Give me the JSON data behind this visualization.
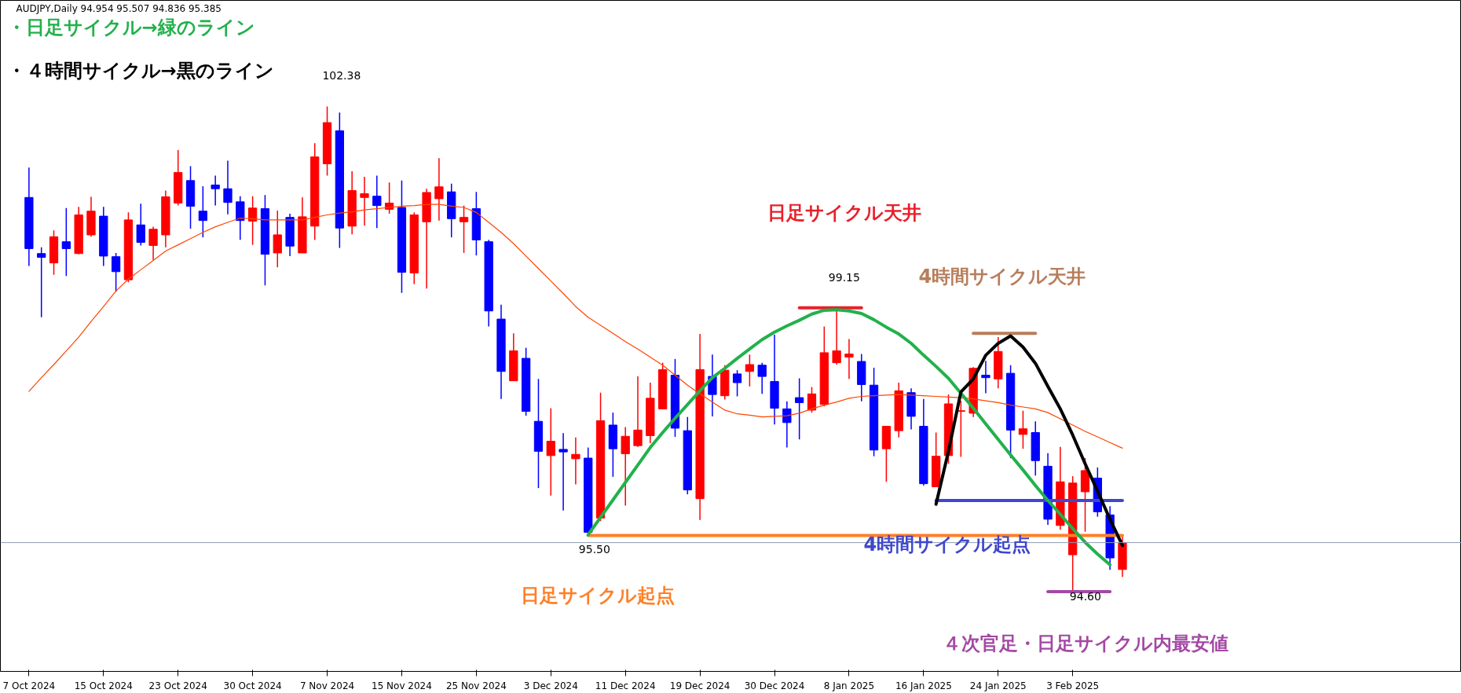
{
  "chart_data": {
    "type": "candlestick",
    "categories": [
      "7 Oct 2024",
      null,
      null,
      null,
      null,
      null,
      "15 Oct 2024",
      null,
      null,
      null,
      null,
      null,
      "23 Oct 2024",
      null,
      null,
      null,
      null,
      null,
      "30 Oct 2024",
      null,
      null,
      null,
      null,
      null,
      "7 Nov 2024",
      null,
      null,
      null,
      null,
      null,
      "15 Nov 2024",
      null,
      null,
      null,
      null,
      null,
      "25 Nov 2024",
      null,
      null,
      null,
      null,
      null,
      "3 Dec 2024",
      null,
      null,
      null,
      null,
      null,
      "11 Dec 2024",
      null,
      null,
      null,
      null,
      null,
      "19 Dec 2024",
      null,
      null,
      null,
      null,
      null,
      "30 Dec 2024",
      null,
      null,
      null,
      null,
      null,
      "8 Jan 2025",
      null,
      null,
      null,
      null,
      null,
      "16 Jan 2025",
      null,
      null,
      null,
      null,
      null,
      "24 Jan 2025",
      null,
      null,
      null,
      null,
      null,
      "3 Feb 2025",
      null,
      null,
      null,
      null
    ],
    "ohlc": [
      [
        100.92,
        101.4,
        99.82,
        100.1
      ],
      [
        100.02,
        100.12,
        99.0,
        99.96
      ],
      [
        99.87,
        100.39,
        99.68,
        100.29
      ],
      [
        100.21,
        100.75,
        99.66,
        100.1
      ],
      [
        100.02,
        100.77,
        100.01,
        100.64
      ],
      [
        100.32,
        100.93,
        100.29,
        100.7
      ],
      [
        100.62,
        100.77,
        99.82,
        99.98
      ],
      [
        99.97,
        100.03,
        99.41,
        99.73
      ],
      [
        99.6,
        100.68,
        99.56,
        100.56
      ],
      [
        100.48,
        100.82,
        100.15,
        100.2
      ],
      [
        100.15,
        100.45,
        99.92,
        100.41
      ],
      [
        100.32,
        101.03,
        100.12,
        100.93
      ],
      [
        100.83,
        101.68,
        100.79,
        101.32
      ],
      [
        101.19,
        101.42,
        100.42,
        100.78
      ],
      [
        100.7,
        101.1,
        100.28,
        100.55
      ],
      [
        101.12,
        101.27,
        100.79,
        101.06
      ],
      [
        101.06,
        101.51,
        100.65,
        100.84
      ],
      [
        100.85,
        100.94,
        100.24,
        100.55
      ],
      [
        100.54,
        100.94,
        100.16,
        100.75
      ],
      [
        100.74,
        100.96,
        99.51,
        100.01
      ],
      [
        100.03,
        100.71,
        99.8,
        100.32
      ],
      [
        100.6,
        100.66,
        99.98,
        100.14
      ],
      [
        100.03,
        100.92,
        100.03,
        100.61
      ],
      [
        100.46,
        101.79,
        100.24,
        101.57
      ],
      [
        101.46,
        102.38,
        101.27,
        102.12
      ],
      [
        101.99,
        102.28,
        100.11,
        100.43
      ],
      [
        100.46,
        101.34,
        100.33,
        101.03
      ],
      [
        100.92,
        101.25,
        100.47,
        100.98
      ],
      [
        100.94,
        101.27,
        100.43,
        100.79
      ],
      [
        100.73,
        101.16,
        100.66,
        100.83
      ],
      [
        100.76,
        101.19,
        99.39,
        99.72
      ],
      [
        99.71,
        100.68,
        99.53,
        100.64
      ],
      [
        100.53,
        101.06,
        99.46,
        101.0
      ],
      [
        100.9,
        101.55,
        100.55,
        101.09
      ],
      [
        101.01,
        101.14,
        100.28,
        100.58
      ],
      [
        100.53,
        100.79,
        100.03,
        100.6
      ],
      [
        100.74,
        101.01,
        99.99,
        100.24
      ],
      [
        100.21,
        100.24,
        98.85,
        99.1
      ],
      [
        98.97,
        99.2,
        97.69,
        98.13
      ],
      [
        97.98,
        98.74,
        97.98,
        98.46
      ],
      [
        98.34,
        98.51,
        97.42,
        97.49
      ],
      [
        97.33,
        98.01,
        96.26,
        96.85
      ],
      [
        96.78,
        97.54,
        96.14,
        97.01
      ],
      [
        96.88,
        97.14,
        95.9,
        96.84
      ],
      [
        96.73,
        97.07,
        96.32,
        96.8
      ],
      [
        96.74,
        96.91,
        95.5,
        95.55
      ],
      [
        95.78,
        97.79,
        95.73,
        97.34
      ],
      [
        97.27,
        97.47,
        96.44,
        96.89
      ],
      [
        96.81,
        97.24,
        95.98,
        97.09
      ],
      [
        96.94,
        98.05,
        96.92,
        97.19
      ],
      [
        97.1,
        97.95,
        96.98,
        97.7
      ],
      [
        97.53,
        98.27,
        97.52,
        98.16
      ],
      [
        98.07,
        98.33,
        97.08,
        97.22
      ],
      [
        97.18,
        97.4,
        96.16,
        96.23
      ],
      [
        96.09,
        98.73,
        95.75,
        98.16
      ],
      [
        98.05,
        98.4,
        97.41,
        97.76
      ],
      [
        97.74,
        98.23,
        97.68,
        98.15
      ],
      [
        98.09,
        98.15,
        97.73,
        97.95
      ],
      [
        98.13,
        98.4,
        97.89,
        98.24
      ],
      [
        98.23,
        98.27,
        97.77,
        98.05
      ],
      [
        97.97,
        98.72,
        97.28,
        97.54
      ],
      [
        97.53,
        97.65,
        96.91,
        97.31
      ],
      [
        97.71,
        98.02,
        97.04,
        97.63
      ],
      [
        97.51,
        97.88,
        97.47,
        97.77
      ],
      [
        97.6,
        98.85,
        97.57,
        98.43
      ],
      [
        98.27,
        99.15,
        98.24,
        98.46
      ],
      [
        98.36,
        98.65,
        98.01,
        98.41
      ],
      [
        98.29,
        98.41,
        97.65,
        97.92
      ],
      [
        97.91,
        98.19,
        96.77,
        96.87
      ],
      [
        96.89,
        97.25,
        96.36,
        97.25
      ],
      [
        97.18,
        97.95,
        97.07,
        97.82
      ],
      [
        97.79,
        97.86,
        97.2,
        97.41
      ],
      [
        97.25,
        97.69,
        96.3,
        96.33
      ],
      [
        96.28,
        97.15,
        96.28,
        96.77
      ],
      [
        96.78,
        97.76,
        96.65,
        97.61
      ],
      [
        97.49,
        97.66,
        96.76,
        97.5
      ],
      [
        97.46,
        98.2,
        97.4,
        98.18
      ],
      [
        98.07,
        98.3,
        97.78,
        98.03
      ],
      [
        98.01,
        98.68,
        97.86,
        98.45
      ],
      [
        98.1,
        98.23,
        96.74,
        97.19
      ],
      [
        97.12,
        97.5,
        96.89,
        97.21
      ],
      [
        97.15,
        97.33,
        96.46,
        96.7
      ],
      [
        96.61,
        96.82,
        95.67,
        95.76
      ],
      [
        95.66,
        96.92,
        95.59,
        96.36
      ],
      [
        95.19,
        96.45,
        94.6,
        96.34
      ],
      [
        96.2,
        96.74,
        95.56,
        96.54
      ],
      [
        96.42,
        96.59,
        95.8,
        95.88
      ],
      [
        95.83,
        95.97,
        94.95,
        95.14
      ],
      [
        94.954,
        95.507,
        94.836,
        95.385
      ]
    ],
    "colors": [
      "#0000ff",
      "#0000ff",
      "#ff0000",
      "#0000ff",
      "#ff0000",
      "#ff0000",
      "#0000ff",
      "#0000ff",
      "#ff0000",
      "#0000ff",
      "#ff0000",
      "#ff0000",
      "#ff0000",
      "#0000ff",
      "#0000ff",
      "#0000ff",
      "#0000ff",
      "#0000ff",
      "#ff0000",
      "#0000ff",
      "#ff0000",
      "#0000ff",
      "#ff0000",
      "#ff0000",
      "#ff0000",
      "#0000ff",
      "#ff0000",
      "#ff0000",
      "#0000ff",
      "#ff0000",
      "#0000ff",
      "#ff0000",
      "#ff0000",
      "#ff0000",
      "#0000ff",
      "#ff0000",
      "#0000ff",
      "#0000ff",
      "#0000ff",
      "#ff0000",
      "#0000ff",
      "#0000ff",
      "#ff0000",
      "#0000ff",
      "#ff0000",
      "#0000ff",
      "#ff0000",
      "#0000ff",
      "#ff0000",
      "#ff0000",
      "#ff0000",
      "#ff0000",
      "#0000ff",
      "#0000ff",
      "#ff0000",
      "#0000ff",
      "#ff0000",
      "#0000ff",
      "#ff0000",
      "#0000ff",
      "#0000ff",
      "#0000ff",
      "#0000ff",
      "#ff0000",
      "#ff0000",
      "#ff0000",
      "#ff0000",
      "#0000ff",
      "#0000ff",
      "#ff0000",
      "#ff0000",
      "#0000ff",
      "#0000ff",
      "#ff0000",
      "#ff0000",
      "#ff0000",
      "#ff0000",
      "#0000ff",
      "#ff0000",
      "#0000ff",
      "#ff0000",
      "#0000ff",
      "#0000ff",
      "#ff0000",
      "#ff0000",
      "#ff0000",
      "#0000ff",
      "#0000ff",
      "#ff0000"
    ],
    "series": [
      {
        "type": "line",
        "color": "#ff4500",
        "values": [
          97.81,
          98.03,
          98.24,
          98.46,
          98.68,
          98.93,
          99.17,
          99.42,
          99.61,
          99.76,
          99.91,
          100.06,
          100.16,
          100.26,
          100.36,
          100.45,
          100.52,
          100.59,
          100.58,
          100.56,
          100.56,
          100.56,
          100.56,
          100.6,
          100.64,
          100.67,
          100.69,
          100.72,
          100.74,
          100.76,
          100.78,
          100.79,
          100.81,
          100.81,
          100.78,
          100.76,
          100.68,
          100.52,
          100.36,
          100.18,
          99.98,
          99.78,
          99.58,
          99.38,
          99.17,
          99.0,
          98.87,
          98.74,
          98.61,
          98.49,
          98.36,
          98.23,
          98.07,
          97.91,
          97.77,
          97.64,
          97.51,
          97.45,
          97.43,
          97.4,
          97.41,
          97.42,
          97.46,
          97.53,
          97.59,
          97.64,
          97.7,
          97.73,
          97.74,
          97.75,
          97.76,
          97.75,
          97.74,
          97.73,
          97.72,
          97.71,
          97.69,
          97.66,
          97.63,
          97.59,
          97.56,
          97.53,
          97.47,
          97.37,
          97.27,
          97.17,
          97.08,
          96.99,
          96.9
        ]
      },
      {
        "type": "line",
        "color": "#e8202a",
        "values": [
          null,
          null,
          null,
          null,
          null,
          null,
          null,
          null,
          null,
          null,
          null,
          null,
          null,
          null,
          null,
          null,
          null,
          null,
          null,
          null,
          null,
          null,
          null,
          null,
          null,
          null,
          null,
          null,
          null,
          null,
          null,
          null,
          null,
          null,
          null,
          null,
          null,
          null,
          null,
          null,
          null,
          null,
          null,
          null,
          null,
          null,
          null,
          null,
          null,
          null,
          null,
          null,
          null,
          null,
          null,
          null,
          null,
          null,
          null,
          null,
          null,
          null,
          99.15,
          99.15,
          99.15,
          99.15,
          99.15,
          99.15,
          null,
          null,
          null,
          null,
          null,
          null,
          null,
          null,
          null,
          null,
          null,
          null,
          null,
          null,
          null,
          null,
          null,
          null,
          null,
          null,
          null
        ]
      },
      {
        "type": "line",
        "color": "#b87d5b",
        "values": [
          null,
          null,
          null,
          null,
          null,
          null,
          null,
          null,
          null,
          null,
          null,
          null,
          null,
          null,
          null,
          null,
          null,
          null,
          null,
          null,
          null,
          null,
          null,
          null,
          null,
          null,
          null,
          null,
          null,
          null,
          null,
          null,
          null,
          null,
          null,
          null,
          null,
          null,
          null,
          null,
          null,
          null,
          null,
          null,
          null,
          null,
          null,
          null,
          null,
          null,
          null,
          null,
          null,
          null,
          null,
          null,
          null,
          null,
          null,
          null,
          null,
          null,
          null,
          null,
          null,
          null,
          null,
          null,
          null,
          null,
          null,
          null,
          null,
          null,
          null,
          null,
          98.74,
          98.74,
          98.74,
          98.74,
          98.74,
          98.74,
          null,
          null,
          null,
          null,
          null,
          null,
          null
        ]
      },
      {
        "type": "line",
        "color": "#3f48cc",
        "values": [
          null,
          null,
          null,
          null,
          null,
          null,
          null,
          null,
          null,
          null,
          null,
          null,
          null,
          null,
          null,
          null,
          null,
          null,
          null,
          null,
          null,
          null,
          null,
          null,
          null,
          null,
          null,
          null,
          null,
          null,
          null,
          null,
          null,
          null,
          null,
          null,
          null,
          null,
          null,
          null,
          null,
          null,
          null,
          null,
          null,
          null,
          null,
          null,
          null,
          null,
          null,
          null,
          null,
          null,
          null,
          null,
          null,
          null,
          null,
          null,
          null,
          null,
          null,
          null,
          null,
          null,
          null,
          null,
          null,
          null,
          null,
          null,
          null,
          96.06,
          96.06,
          96.06,
          96.06,
          96.06,
          96.06,
          96.06,
          96.06,
          96.06,
          96.06,
          96.06,
          96.06,
          96.06,
          96.06,
          96.06,
          96.06
        ]
      },
      {
        "type": "line",
        "color": "#ff7f27",
        "values": [
          null,
          null,
          null,
          null,
          null,
          null,
          null,
          null,
          null,
          null,
          null,
          null,
          null,
          null,
          null,
          null,
          null,
          null,
          null,
          null,
          null,
          null,
          null,
          null,
          null,
          null,
          null,
          null,
          null,
          null,
          null,
          null,
          null,
          null,
          null,
          null,
          null,
          null,
          null,
          null,
          null,
          null,
          null,
          null,
          null,
          95.5,
          95.5,
          95.5,
          95.5,
          95.5,
          95.5,
          95.5,
          95.5,
          95.5,
          95.5,
          95.5,
          95.5,
          95.5,
          95.5,
          95.5,
          95.5,
          95.5,
          95.5,
          95.5,
          95.5,
          95.5,
          95.5,
          95.5,
          95.5,
          95.5,
          95.5,
          95.5,
          95.5,
          95.5,
          95.5,
          95.5,
          95.5,
          95.5,
          95.5,
          95.5,
          95.5,
          95.5,
          95.5,
          95.5,
          95.5,
          95.5,
          95.5,
          95.5,
          95.5
        ]
      },
      {
        "type": "line",
        "color": "#a349a4",
        "values": [
          null,
          null,
          null,
          null,
          null,
          null,
          null,
          null,
          null,
          null,
          null,
          null,
          null,
          null,
          null,
          null,
          null,
          null,
          null,
          null,
          null,
          null,
          null,
          null,
          null,
          null,
          null,
          null,
          null,
          null,
          null,
          null,
          null,
          null,
          null,
          null,
          null,
          null,
          null,
          null,
          null,
          null,
          null,
          null,
          null,
          null,
          null,
          null,
          null,
          null,
          null,
          null,
          null,
          null,
          null,
          null,
          null,
          null,
          null,
          null,
          null,
          null,
          null,
          null,
          null,
          null,
          null,
          null,
          null,
          null,
          null,
          null,
          null,
          null,
          null,
          null,
          null,
          null,
          null,
          null,
          null,
          null,
          94.6,
          94.6,
          94.6,
          94.6,
          94.6,
          94.6,
          null
        ]
      },
      {
        "type": "line",
        "color": "#22b14c",
        "values": [
          null,
          null,
          null,
          null,
          null,
          null,
          null,
          null,
          null,
          null,
          null,
          null,
          null,
          null,
          null,
          null,
          null,
          null,
          null,
          null,
          null,
          null,
          null,
          null,
          null,
          null,
          null,
          null,
          null,
          null,
          null,
          null,
          null,
          null,
          null,
          null,
          null,
          null,
          null,
          null,
          null,
          null,
          null,
          null,
          null,
          95.51,
          95.79,
          96.07,
          96.35,
          96.63,
          96.91,
          97.15,
          97.38,
          97.6,
          97.82,
          98.03,
          98.18,
          98.34,
          98.49,
          98.64,
          98.76,
          98.86,
          98.95,
          99.05,
          99.11,
          99.12,
          99.1,
          99.06,
          98.96,
          98.84,
          98.73,
          98.58,
          98.39,
          98.21,
          98.02,
          97.78,
          97.54,
          97.29,
          97.04,
          96.79,
          96.55,
          96.3,
          96.06,
          95.84,
          95.61,
          95.39,
          95.2,
          95.03,
          null
        ]
      },
      {
        "type": "line",
        "color": "#000000",
        "values": [
          null,
          null,
          null,
          null,
          null,
          null,
          null,
          null,
          null,
          null,
          null,
          null,
          null,
          null,
          null,
          null,
          null,
          null,
          null,
          null,
          null,
          null,
          null,
          null,
          null,
          null,
          null,
          null,
          null,
          null,
          null,
          null,
          null,
          null,
          null,
          null,
          null,
          null,
          null,
          null,
          null,
          null,
          null,
          null,
          null,
          null,
          null,
          null,
          null,
          null,
          null,
          null,
          null,
          null,
          null,
          null,
          null,
          null,
          null,
          null,
          null,
          null,
          null,
          null,
          null,
          null,
          null,
          null,
          null,
          null,
          null,
          null,
          null,
          96.0,
          96.85,
          97.8,
          98.01,
          98.39,
          98.58,
          98.7,
          98.52,
          98.26,
          97.89,
          97.53,
          97.11,
          96.65,
          96.21,
          95.76,
          95.34
        ]
      }
    ],
    "ref_lines": [
      {
        "axis": "y",
        "value": 95.385,
        "color": "#8e9db2"
      }
    ],
    "ylim": [
      93.32,
      104.08
    ],
    "tick_labels": "x",
    "grid": false,
    "annotations": [
      "AUDJPY,Daily  94.954 95.507 94.836 95.385",
      "・日足サイクル→緑のライン",
      "・４時間サイクル→黒のライン",
      "102.38",
      "99.15",
      "日足サイクル天井",
      "4時間サイクル天井",
      "95.50",
      "日足サイクル起点",
      "4時間サイクル起点",
      "94.60",
      "４次官足・日足サイクル内最安値"
    ]
  }
}
